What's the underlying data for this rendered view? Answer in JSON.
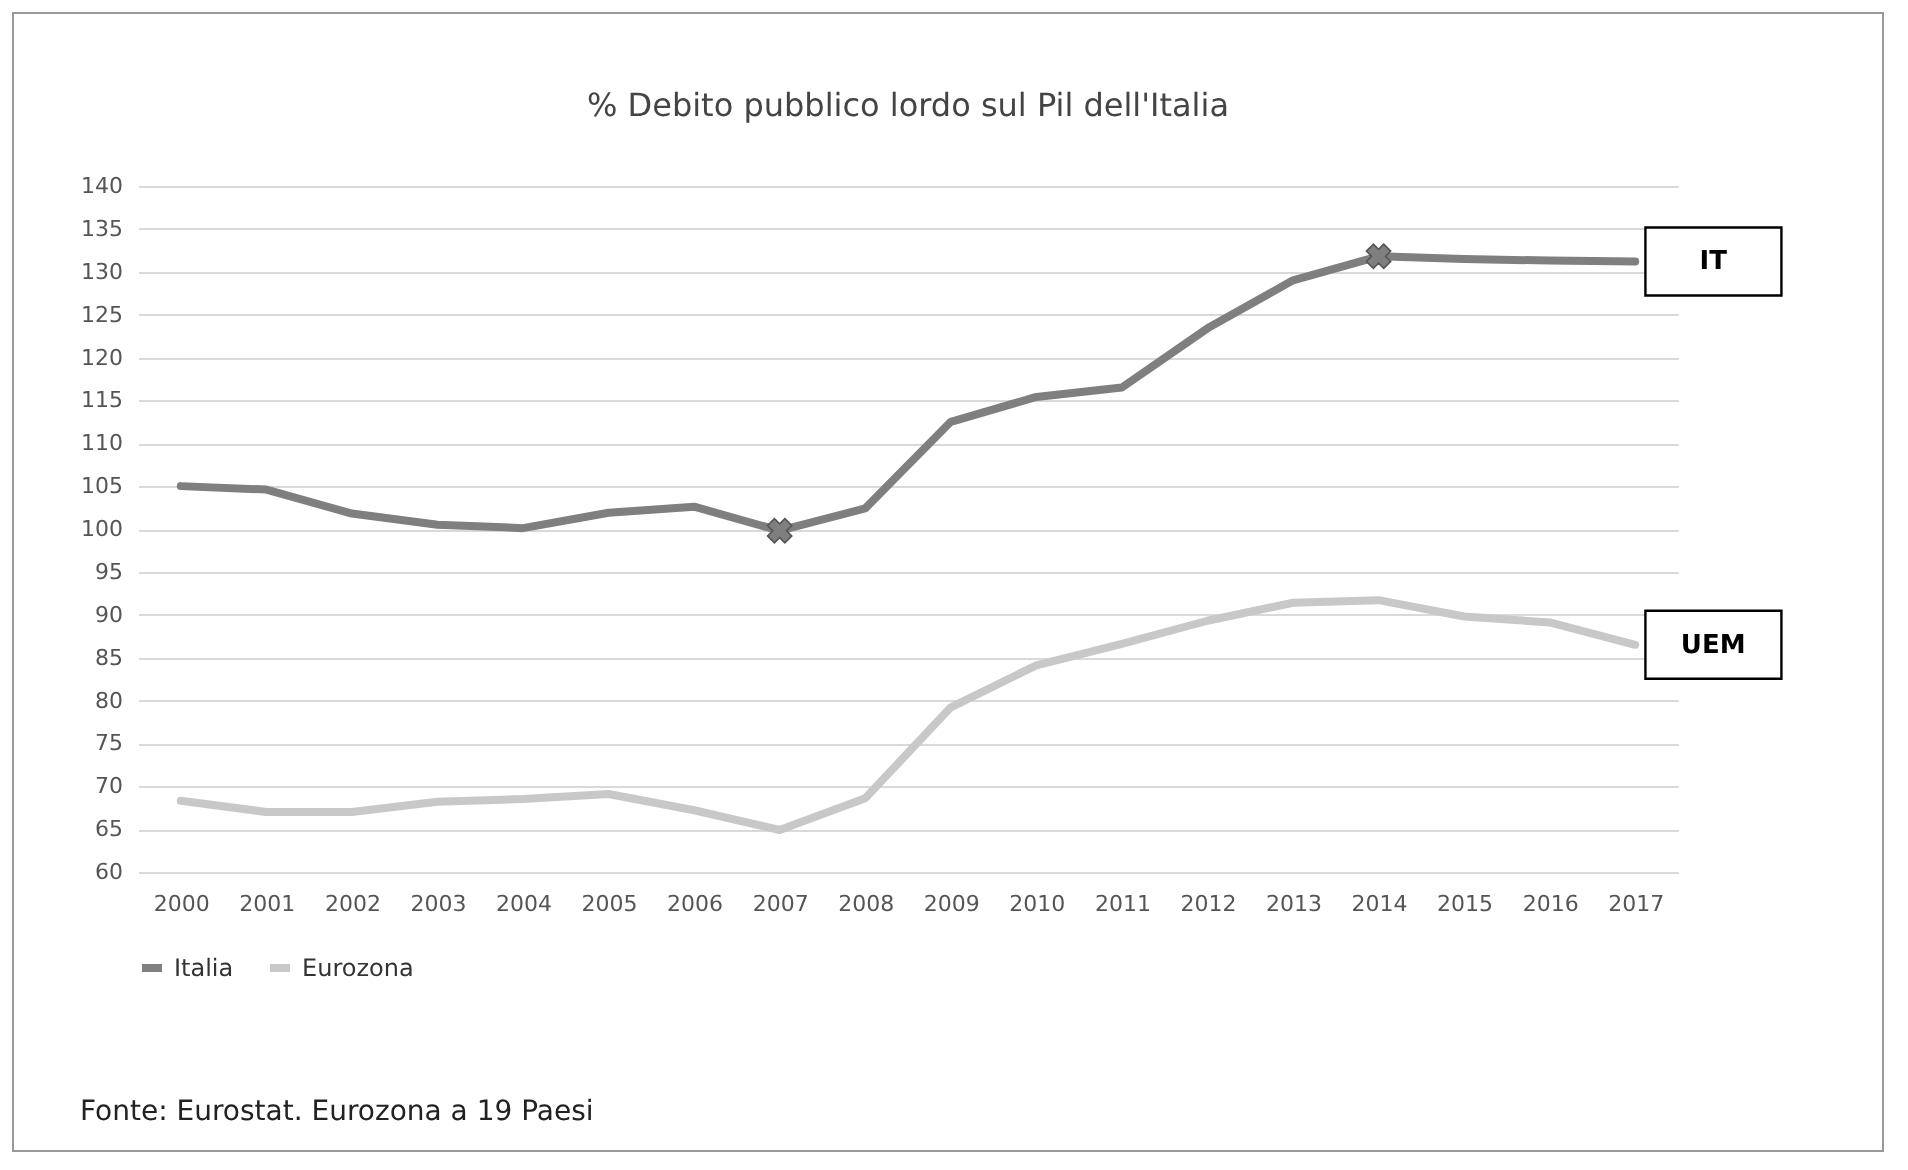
{
  "chart_data": {
    "type": "line",
    "title": "% Debito pubblico lordo sul Pil dell'Italia",
    "x": [
      2000,
      2001,
      2002,
      2003,
      2004,
      2005,
      2006,
      2007,
      2008,
      2009,
      2010,
      2011,
      2012,
      2013,
      2014,
      2015,
      2016,
      2017
    ],
    "series": [
      {
        "name": "Italia",
        "color": "#7f7f7f",
        "values": [
          105.0,
          104.6,
          101.8,
          100.5,
          100.1,
          101.9,
          102.6,
          99.8,
          102.4,
          112.5,
          115.4,
          116.5,
          123.4,
          129.0,
          131.8,
          131.5,
          131.3,
          131.2
        ]
      },
      {
        "name": "Eurozona",
        "color": "#c8c8c8",
        "values": [
          68.3,
          67.0,
          67.0,
          68.2,
          68.5,
          69.1,
          67.2,
          64.9,
          68.6,
          79.2,
          84.1,
          86.6,
          89.3,
          91.4,
          91.7,
          89.8,
          89.1,
          86.5
        ]
      },
      {
        "type": "scatter",
        "marker": "cross",
        "color": "#7f7f7f",
        "x": [
          2007,
          2014
        ],
        "values": [
          99.8,
          131.8
        ]
      }
    ],
    "xlim": [
      1999.5,
      2017.5
    ],
    "xticks": [
      2000,
      2001,
      2002,
      2003,
      2004,
      2005,
      2006,
      2007,
      2008,
      2009,
      2010,
      2011,
      2012,
      2013,
      2014,
      2015,
      2016,
      2017
    ],
    "ylim": [
      60,
      140
    ],
    "yticks": [
      60,
      65,
      70,
      75,
      80,
      85,
      90,
      95,
      100,
      105,
      110,
      115,
      120,
      125,
      130,
      135,
      140
    ],
    "grid": "y",
    "legend": "bottom",
    "marker": "none",
    "annotations": [
      {
        "text": "IT",
        "x": 2017,
        "y": 131.2
      },
      {
        "text": "UEM",
        "x": 2017,
        "y": 86.5
      },
      "Fonte: Eurostat. Eurozona a 19 Paesi"
    ]
  }
}
